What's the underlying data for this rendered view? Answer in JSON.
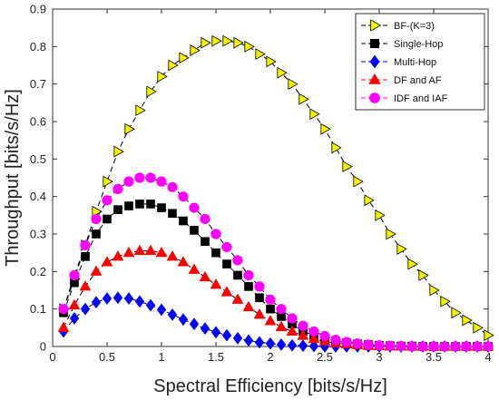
{
  "chart_data": {
    "type": "line",
    "title": "",
    "xlabel": "Spectral Efficiency [bits/s/Hz]",
    "ylabel": "Throughput [bits/s/Hz]",
    "xlim": [
      0,
      4
    ],
    "ylim": [
      0,
      0.9
    ],
    "xticks": [
      0,
      0.5,
      1,
      1.5,
      2,
      2.5,
      3,
      3.5,
      4
    ],
    "yticks": [
      0,
      0.1,
      0.2,
      0.3,
      0.4,
      0.5,
      0.6,
      0.7,
      0.8,
      0.9
    ],
    "grid": false,
    "legend_position": "top-right",
    "x": [
      0.1,
      0.2,
      0.3,
      0.4,
      0.5,
      0.6,
      0.7,
      0.8,
      0.9,
      1.0,
      1.1,
      1.2,
      1.3,
      1.4,
      1.5,
      1.6,
      1.7,
      1.8,
      1.9,
      2.0,
      2.1,
      2.2,
      2.3,
      2.4,
      2.5,
      2.6,
      2.7,
      2.8,
      2.9,
      3.0,
      3.1,
      3.2,
      3.3,
      3.4,
      3.5,
      3.6,
      3.7,
      3.8,
      3.9,
      4.0
    ],
    "series": [
      {
        "name": "BF-(K=3)",
        "color": "#f5f500",
        "marker": "triangle-right",
        "line_style": "dashed",
        "values": [
          0.1,
          0.18,
          0.27,
          0.36,
          0.44,
          0.52,
          0.58,
          0.63,
          0.68,
          0.72,
          0.75,
          0.77,
          0.79,
          0.81,
          0.815,
          0.815,
          0.81,
          0.8,
          0.78,
          0.76,
          0.73,
          0.7,
          0.66,
          0.62,
          0.58,
          0.53,
          0.48,
          0.44,
          0.39,
          0.35,
          0.3,
          0.26,
          0.22,
          0.19,
          0.15,
          0.12,
          0.09,
          0.07,
          0.05,
          0.03
        ]
      },
      {
        "name": "Single-Hop",
        "color": "#000000",
        "marker": "square",
        "line_style": "dashed",
        "values": [
          0.09,
          0.17,
          0.24,
          0.3,
          0.34,
          0.365,
          0.375,
          0.38,
          0.38,
          0.37,
          0.355,
          0.335,
          0.31,
          0.28,
          0.25,
          0.22,
          0.19,
          0.16,
          0.13,
          0.1,
          0.08,
          0.06,
          0.04,
          0.03,
          0.02,
          0.015,
          0.01,
          0.007,
          0.005,
          0.003,
          0.002,
          0.001,
          0.001,
          0.0,
          0.0,
          0.0,
          0.0,
          0.0,
          0.0,
          0.0
        ]
      },
      {
        "name": "Multi-Hop",
        "color": "#0000ff",
        "marker": "diamond",
        "line_style": "dashed",
        "values": [
          0.04,
          0.075,
          0.1,
          0.118,
          0.128,
          0.13,
          0.128,
          0.12,
          0.11,
          0.098,
          0.085,
          0.072,
          0.06,
          0.048,
          0.038,
          0.03,
          0.022,
          0.016,
          0.011,
          0.008,
          0.005,
          0.003,
          0.002,
          0.001,
          0.0,
          0.0,
          0.0,
          0.0,
          0.0,
          0.0,
          0.0,
          0.0,
          0.0,
          0.0,
          0.0,
          0.0,
          0.0,
          0.0,
          0.0,
          0.0
        ]
      },
      {
        "name": "DF and AF",
        "color": "#ff0000",
        "marker": "triangle-up",
        "line_style": "dashed",
        "values": [
          0.05,
          0.11,
          0.16,
          0.2,
          0.225,
          0.24,
          0.25,
          0.255,
          0.255,
          0.25,
          0.24,
          0.225,
          0.205,
          0.185,
          0.165,
          0.145,
          0.125,
          0.105,
          0.085,
          0.068,
          0.052,
          0.04,
          0.029,
          0.02,
          0.014,
          0.009,
          0.006,
          0.004,
          0.002,
          0.001,
          0.0,
          0.0,
          0.0,
          0.0,
          0.0,
          0.0,
          0.0,
          0.0,
          0.0,
          0.0
        ]
      },
      {
        "name": "IDF and IAF",
        "color": "#ff00ff",
        "marker": "circle",
        "line_style": "dashed",
        "values": [
          0.1,
          0.19,
          0.27,
          0.34,
          0.39,
          0.42,
          0.44,
          0.45,
          0.45,
          0.44,
          0.425,
          0.4,
          0.37,
          0.34,
          0.3,
          0.265,
          0.23,
          0.19,
          0.16,
          0.125,
          0.1,
          0.075,
          0.055,
          0.04,
          0.028,
          0.018,
          0.012,
          0.008,
          0.005,
          0.003,
          0.002,
          0.001,
          0.0,
          0.0,
          0.0,
          0.0,
          0.0,
          0.0,
          0.0,
          0.0
        ]
      }
    ]
  }
}
